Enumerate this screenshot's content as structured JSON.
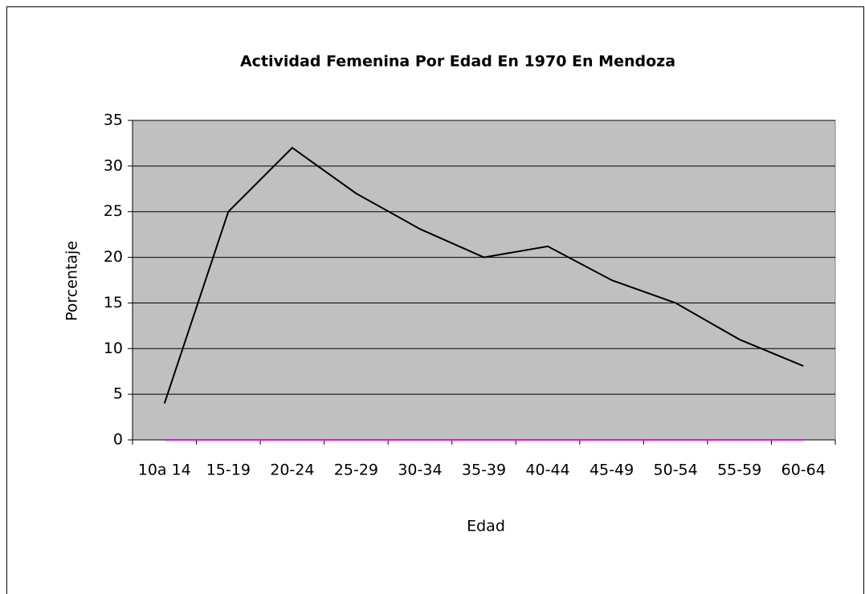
{
  "chart_data": {
    "type": "line",
    "title": "Actividad Femenina Por Edad En 1970 En Mendoza",
    "x_label": "Edad",
    "y_label": "Porcentaje",
    "categories": [
      "10a 14",
      "15-19",
      "20-24",
      "25-29",
      "30-34",
      "35-39",
      "40-44",
      "45-49",
      "50-54",
      "55-59",
      "60-64"
    ],
    "series": [
      {
        "color": "#000000",
        "values": [
          4,
          25,
          32,
          27,
          23.1,
          20,
          21.2,
          17.5,
          15,
          11,
          8.1
        ]
      },
      {
        "color": "#ff00ff",
        "values": [
          0,
          0,
          0,
          0,
          0,
          0,
          0,
          0,
          0,
          0,
          0
        ]
      }
    ],
    "ylim": [
      0,
      35
    ],
    "yticks": [
      0,
      5,
      10,
      15,
      20,
      25,
      30,
      35
    ],
    "grid": true,
    "plot_background": "#c0c0c0"
  }
}
